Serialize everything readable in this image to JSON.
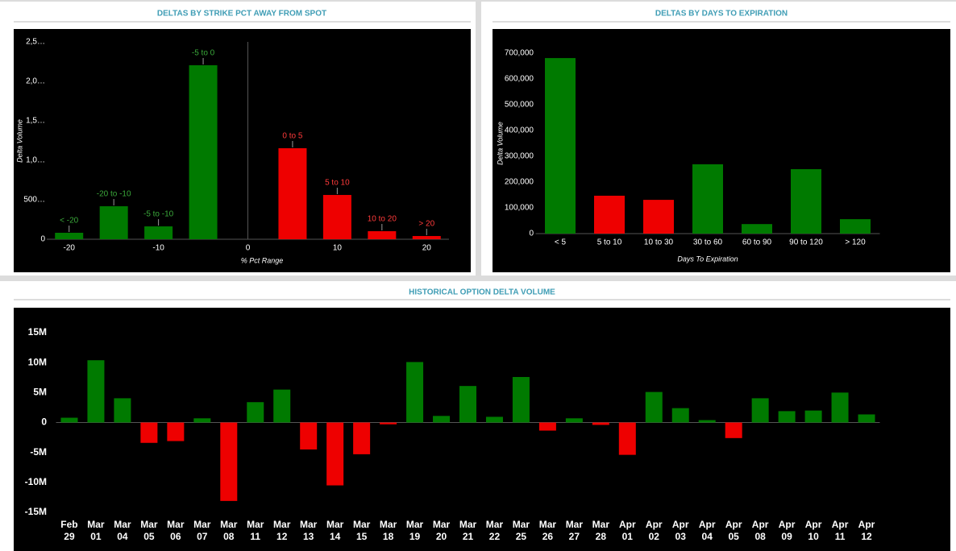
{
  "chart_data": [
    {
      "type": "bar",
      "title": "DELTAS BY STRIKE PCT AWAY FROM SPOT",
      "x_label": "% Pct Range",
      "y_label": "Delta Volume",
      "x": [
        -20,
        -15,
        -10,
        -5,
        5,
        10,
        15,
        20
      ],
      "values": [
        82000,
        418000,
        163000,
        2204000,
        1153000,
        561000,
        102000,
        41000
      ],
      "point_labels": [
        "< -20",
        "-20 to -10",
        "-5 to -10",
        "-5 to 0",
        "0 to 5",
        "5 to 10",
        "10 to 20",
        "> 20"
      ],
      "colors": [
        "#007a00",
        "#007a00",
        "#007a00",
        "#007a00",
        "#ee0000",
        "#ee0000",
        "#ee0000",
        "#ee0000"
      ],
      "xlim": [
        -22.5,
        22.5
      ],
      "xticks": [
        -20,
        -10,
        0,
        10,
        20
      ],
      "ylim": [
        0,
        2500000
      ],
      "yticks": [
        0,
        {
          "value": 500000,
          "label": "500…"
        },
        {
          "value": 1000000,
          "label": "1,0…"
        },
        {
          "value": 1500000,
          "label": "1,5…"
        },
        {
          "value": 2000000,
          "label": "2,0…"
        },
        {
          "value": 2500000,
          "label": "2,5…"
        }
      ]
    },
    {
      "type": "bar",
      "title": "DELTAS BY DAYS TO EXPIRATION",
      "x_label": "Days To Expiration",
      "y_label": "Delta Volume",
      "categories": [
        "< 5",
        "5 to 10",
        "10 to 30",
        "30 to 60",
        "60 to 90",
        "90 to 120",
        "> 120"
      ],
      "values": [
        681000,
        147000,
        131000,
        269000,
        37000,
        250000,
        56000
      ],
      "colors": [
        "#007a00",
        "#ee0000",
        "#ee0000",
        "#007a00",
        "#007a00",
        "#007a00",
        "#007a00"
      ],
      "ylim": [
        0,
        700000
      ],
      "yticks": [
        0,
        {
          "value": 100000,
          "label": "100,000"
        },
        {
          "value": 200000,
          "label": "200,000"
        },
        {
          "value": 300000,
          "label": "300,000"
        },
        {
          "value": 400000,
          "label": "400,000"
        },
        {
          "value": 500000,
          "label": "500,000"
        },
        {
          "value": 600000,
          "label": "600,000"
        },
        {
          "value": 700000,
          "label": "700,000"
        }
      ]
    },
    {
      "type": "bar",
      "title": "HISTORICAL OPTION DELTA VOLUME",
      "categories": [
        "Feb 29",
        "Mar 01",
        "Mar 04",
        "Mar 05",
        "Mar 06",
        "Mar 07",
        "Mar 08",
        "Mar 11",
        "Mar 12",
        "Mar 13",
        "Mar 14",
        "Mar 15",
        "Mar 18",
        "Mar 19",
        "Mar 20",
        "Mar 21",
        "Mar 22",
        "Mar 25",
        "Mar 26",
        "Mar 27",
        "Mar 28",
        "Apr 01",
        "Apr 02",
        "Apr 03",
        "Apr 04",
        "Apr 05",
        "Apr 08",
        "Apr 09",
        "Apr 10",
        "Apr 11",
        "Apr 12"
      ],
      "values": [
        800000,
        10400000,
        4050000,
        -3400000,
        -3100000,
        700000,
        -13100000,
        3400000,
        5500000,
        -4500000,
        -10500000,
        -5300000,
        -300000,
        10100000,
        1100000,
        6100000,
        950000,
        7600000,
        -1350000,
        700000,
        -400000,
        -5400000,
        5100000,
        2400000,
        400000,
        -2600000,
        4050000,
        1900000,
        2000000,
        5000000,
        1350000
      ],
      "positive_color": "#007a00",
      "negative_color": "#ee0000",
      "ylim": [
        -15000000,
        15000000
      ],
      "yticks": [
        {
          "value": -15000000,
          "label": "-15M"
        },
        {
          "value": -10000000,
          "label": "-10M"
        },
        {
          "value": -5000000,
          "label": "-5M"
        },
        0,
        {
          "value": 5000000,
          "label": "5M"
        },
        {
          "value": 10000000,
          "label": "10M"
        },
        {
          "value": 15000000,
          "label": "15M"
        }
      ]
    }
  ]
}
